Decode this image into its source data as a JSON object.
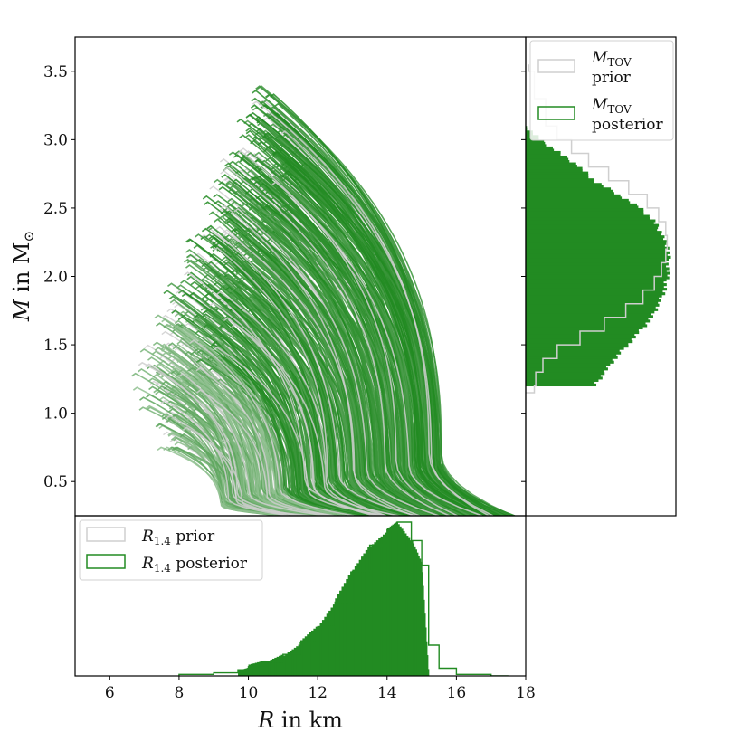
{
  "chart_data": [
    {
      "id": "mass-radius",
      "type": "line",
      "xlabel_var": "R",
      "xlabel_rest": " in km",
      "ylabel_var": "M",
      "ylabel_rest": " in M",
      "ylabel_sub": "⊙",
      "xlim": [
        5,
        18
      ],
      "ylim": [
        0.25,
        3.75
      ],
      "x_ticks": [
        "6",
        "8",
        "10",
        "12",
        "14",
        "16",
        "18"
      ],
      "y_ticks": [
        "0.5",
        "1.0",
        "1.5",
        "2.0",
        "2.5",
        "3.0",
        "3.5"
      ],
      "series": [
        {
          "role": "prior",
          "color": "#cfcfcf"
        },
        {
          "role": "posterior",
          "color": "#228b22"
        }
      ]
    },
    {
      "id": "mtov-histogram",
      "type": "histogram",
      "orientation": "horizontal",
      "legend": [
        {
          "label_var": "M",
          "label_sub": "TOV",
          "label_rest": "prior",
          "color": "#cfcfcf"
        },
        {
          "label_var": "M",
          "label_sub": "TOV",
          "label_rest": "posterior",
          "color": "#228b22"
        }
      ],
      "bins": [
        {
          "m": 1.15,
          "prior": 0.06,
          "post": 0.0
        },
        {
          "m": 1.2,
          "prior": 0.07,
          "post": 0.48
        },
        {
          "m": 1.3,
          "prior": 0.12,
          "post": 0.55
        },
        {
          "m": 1.4,
          "prior": 0.22,
          "post": 0.62
        },
        {
          "m": 1.5,
          "prior": 0.38,
          "post": 0.71
        },
        {
          "m": 1.6,
          "prior": 0.55,
          "post": 0.8
        },
        {
          "m": 1.7,
          "prior": 0.7,
          "post": 0.88
        },
        {
          "m": 1.8,
          "prior": 0.82,
          "post": 0.93
        },
        {
          "m": 1.9,
          "prior": 0.9,
          "post": 0.97
        },
        {
          "m": 2.0,
          "prior": 0.95,
          "post": 0.99
        },
        {
          "m": 2.1,
          "prior": 0.98,
          "post": 1.0
        },
        {
          "m": 2.2,
          "prior": 0.99,
          "post": 1.0
        },
        {
          "m": 2.3,
          "prior": 0.98,
          "post": 0.96
        },
        {
          "m": 2.4,
          "prior": 0.93,
          "post": 0.9
        },
        {
          "m": 2.5,
          "prior": 0.85,
          "post": 0.8
        },
        {
          "m": 2.6,
          "prior": 0.72,
          "post": 0.65
        },
        {
          "m": 2.7,
          "prior": 0.58,
          "post": 0.48
        },
        {
          "m": 2.8,
          "prior": 0.44,
          "post": 0.38
        },
        {
          "m": 2.9,
          "prior": 0.32,
          "post": 0.24
        },
        {
          "m": 3.0,
          "prior": 0.22,
          "post": 0.1
        },
        {
          "m": 3.1,
          "prior": 0.14,
          "post": 0.0
        },
        {
          "m": 3.3,
          "prior": 0.06,
          "post": 0.0
        },
        {
          "m": 3.5,
          "prior": 0.02,
          "post": 0.0
        }
      ]
    },
    {
      "id": "r14-histogram",
      "type": "histogram",
      "orientation": "vertical",
      "legend": [
        {
          "label_var": "R",
          "label_sub": "1.4",
          "label_rest": "prior",
          "color": "#cfcfcf"
        },
        {
          "label_var": "R",
          "label_sub": "1.4",
          "label_rest": "posterior",
          "color": "#228b22"
        }
      ],
      "bins": [
        {
          "r": 8.0,
          "prior": 0.01,
          "post": 0.0
        },
        {
          "r": 9.0,
          "prior": 0.02,
          "post": 0.0
        },
        {
          "r": 9.7,
          "prior": 0.04,
          "post": 0.04
        },
        {
          "r": 10.0,
          "prior": 0.06,
          "post": 0.06
        },
        {
          "r": 10.5,
          "prior": 0.09,
          "post": 0.09
        },
        {
          "r": 11.0,
          "prior": 0.14,
          "post": 0.14
        },
        {
          "r": 11.5,
          "prior": 0.22,
          "post": 0.22
        },
        {
          "r": 12.0,
          "prior": 0.32,
          "post": 0.32
        },
        {
          "r": 12.5,
          "prior": 0.48,
          "post": 0.48
        },
        {
          "r": 13.0,
          "prior": 0.68,
          "post": 0.68
        },
        {
          "r": 13.5,
          "prior": 0.85,
          "post": 0.85
        },
        {
          "r": 14.0,
          "prior": 0.95,
          "post": 0.95
        },
        {
          "r": 14.3,
          "prior": 1.0,
          "post": 1.0
        },
        {
          "r": 14.7,
          "prior": 0.88,
          "post": 0.88
        },
        {
          "r": 15.0,
          "prior": 0.72,
          "post": 0.72
        },
        {
          "r": 15.2,
          "prior": 0.2,
          "post": 0.0
        },
        {
          "r": 15.5,
          "prior": 0.05,
          "post": 0.0
        },
        {
          "r": 16.0,
          "prior": 0.01,
          "post": 0.0
        },
        {
          "r": 17.0,
          "prior": 0.0,
          "post": 0.0
        }
      ]
    }
  ]
}
